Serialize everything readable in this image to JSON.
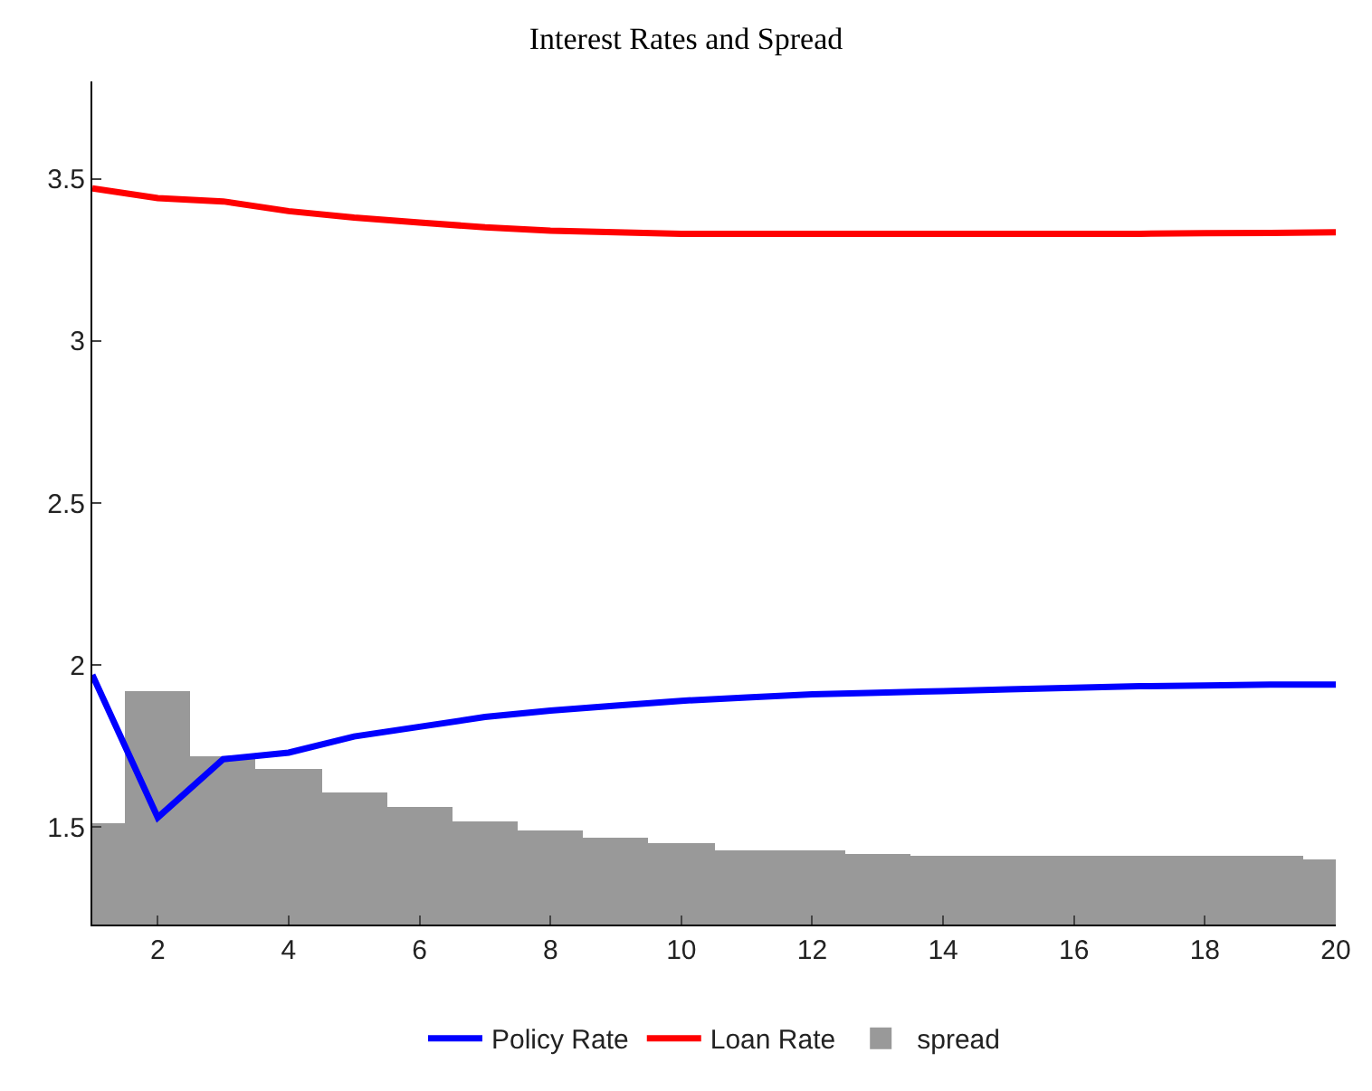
{
  "chart_data": {
    "type": "line",
    "title": "Interest Rates and Spread",
    "x": [
      1,
      2,
      3,
      4,
      5,
      6,
      7,
      8,
      9,
      10,
      11,
      12,
      13,
      14,
      15,
      16,
      17,
      18,
      19,
      20
    ],
    "series": [
      {
        "name": "Policy Rate",
        "color": "#0000ff",
        "values": [
          1.97,
          1.53,
          1.71,
          1.73,
          1.78,
          1.81,
          1.84,
          1.86,
          1.875,
          1.89,
          1.9,
          1.91,
          1.915,
          1.92,
          1.925,
          1.93,
          1.935,
          1.937,
          1.94,
          1.94
        ]
      },
      {
        "name": "Loan Rate",
        "color": "#ff0000",
        "values": [
          3.47,
          3.44,
          3.43,
          3.4,
          3.38,
          3.365,
          3.35,
          3.34,
          3.335,
          3.33,
          3.33,
          3.33,
          3.33,
          3.33,
          3.33,
          3.33,
          3.33,
          3.332,
          3.333,
          3.335
        ]
      },
      {
        "name": "spread",
        "type": "bar",
        "color": "#999999",
        "values": [
          1.51,
          1.92,
          1.72,
          1.68,
          1.61,
          1.56,
          1.52,
          1.49,
          1.47,
          1.45,
          1.43,
          1.43,
          1.42,
          1.41,
          1.41,
          1.41,
          1.41,
          1.41,
          1.41,
          1.4
        ]
      }
    ],
    "xlim": [
      1,
      20
    ],
    "xticks": [
      2,
      4,
      6,
      8,
      10,
      12,
      14,
      16,
      18,
      20
    ],
    "ylim": [
      1.2,
      3.8
    ],
    "yticks": [
      1.5,
      2,
      2.5,
      3,
      3.5
    ],
    "legend": "bottom",
    "line_style": "solid",
    "marker": "none"
  }
}
